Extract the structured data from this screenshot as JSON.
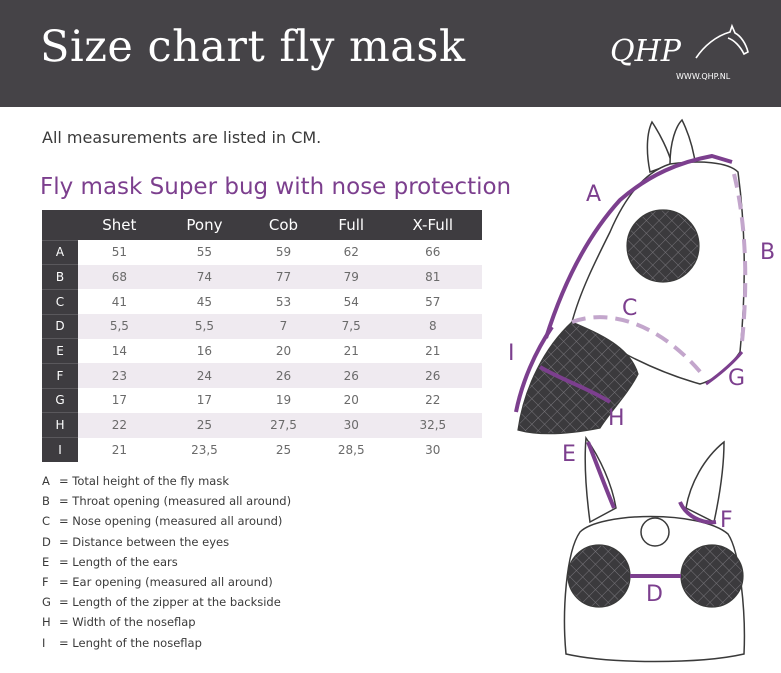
{
  "header": {
    "title": "Size chart fly mask",
    "logo_text": "QHP",
    "logo_url": "WWW.QHP.NL"
  },
  "intro": "All measurements are listed in CM.",
  "subtitle": "Fly mask Super bug with nose protection",
  "colors": {
    "header_bg": "#454347",
    "accent_purple": "#7c3f8e",
    "table_header_bg": "#3e3c40",
    "alt_row_bg": "#efeaf0"
  },
  "table": {
    "columns": [
      "Shet",
      "Pony",
      "Cob",
      "Full",
      "X-Full"
    ],
    "rows": [
      {
        "label": "A",
        "values": [
          "51",
          "55",
          "59",
          "62",
          "66"
        ]
      },
      {
        "label": "B",
        "values": [
          "68",
          "74",
          "77",
          "79",
          "81"
        ]
      },
      {
        "label": "C",
        "values": [
          "41",
          "45",
          "53",
          "54",
          "57"
        ]
      },
      {
        "label": "D",
        "values": [
          "5,5",
          "5,5",
          "7",
          "7,5",
          "8"
        ]
      },
      {
        "label": "E",
        "values": [
          "14",
          "16",
          "20",
          "21",
          "21"
        ]
      },
      {
        "label": "F",
        "values": [
          "23",
          "24",
          "26",
          "26",
          "26"
        ]
      },
      {
        "label": "G",
        "values": [
          "17",
          "17",
          "19",
          "20",
          "22"
        ]
      },
      {
        "label": "H",
        "values": [
          "22",
          "25",
          "27,5",
          "30",
          "32,5"
        ]
      },
      {
        "label": "I",
        "values": [
          "21",
          "23,5",
          "25",
          "28,5",
          "30"
        ]
      }
    ]
  },
  "legend": [
    {
      "key": "A",
      "text": "= Total height of the fly mask"
    },
    {
      "key": "B",
      "text": "= Throat opening (measured all around)"
    },
    {
      "key": "C",
      "text": "= Nose opening (measured all around)"
    },
    {
      "key": "D",
      "text": "= Distance between the eyes"
    },
    {
      "key": "E",
      "text": "= Length of the ears"
    },
    {
      "key": "F",
      "text": "= Ear opening (measured all around)"
    },
    {
      "key": "G",
      "text": "= Length of the zipper at the backside"
    },
    {
      "key": "H",
      "text": "= Width of the noseflap"
    },
    {
      "key": "I",
      "text": "= Lenght of the noseflap"
    }
  ],
  "diagram_labels": {
    "A": "A",
    "B": "B",
    "C": "C",
    "G": "G",
    "H": "H",
    "I": "I",
    "E": "E",
    "F": "F",
    "D": "D"
  }
}
